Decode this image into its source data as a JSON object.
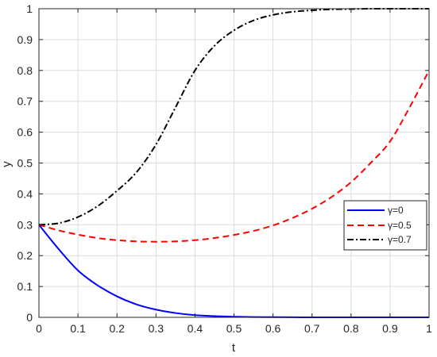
{
  "chart_data": {
    "type": "line",
    "xlabel": "t",
    "ylabel": "y",
    "xlim": [
      0,
      1
    ],
    "ylim": [
      0,
      1
    ],
    "xticks": [
      0,
      0.1,
      0.2,
      0.3,
      0.4,
      0.5,
      0.6,
      0.7,
      0.8,
      0.9,
      1
    ],
    "xtick_labels": [
      "0",
      "0.1",
      "0.2",
      "0.3",
      "0.4",
      "0.5",
      "0.6",
      "0.7",
      "0.8",
      "0.9",
      "1"
    ],
    "yticks": [
      0,
      0.1,
      0.2,
      0.3,
      0.4,
      0.5,
      0.6,
      0.7,
      0.8,
      0.9,
      1
    ],
    "ytick_labels": [
      "0",
      "0.1",
      "0.2",
      "0.3",
      "0.4",
      "0.5",
      "0.6",
      "0.7",
      "0.8",
      "0.9",
      "1"
    ],
    "grid": true,
    "legend_position": "lower-right",
    "x": [
      0,
      0.05,
      0.1,
      0.15,
      0.2,
      0.25,
      0.3,
      0.35,
      0.4,
      0.45,
      0.5,
      0.55,
      0.6,
      0.65,
      0.7,
      0.75,
      0.8,
      0.85,
      0.9,
      0.95,
      1
    ],
    "series": [
      {
        "name": "γ=0",
        "color": "#0000ff",
        "dash": "solid",
        "values": [
          0.3,
          0.222,
          0.152,
          0.104,
          0.068,
          0.042,
          0.025,
          0.014,
          0.007,
          0.004,
          0.002,
          0.001,
          0.0005,
          0.0002,
          0.0001,
          0,
          0,
          0,
          0,
          0,
          0
        ]
      },
      {
        "name": "γ=0.5",
        "color": "#ff0000",
        "dash": "dashed",
        "values": [
          0.3,
          0.282,
          0.268,
          0.257,
          0.25,
          0.246,
          0.245,
          0.246,
          0.25,
          0.257,
          0.267,
          0.28,
          0.298,
          0.322,
          0.352,
          0.39,
          0.438,
          0.5,
          0.57,
          0.68,
          0.8
        ]
      },
      {
        "name": "γ=0.7",
        "color": "#000000",
        "dash": "dashdot",
        "values": [
          0.3,
          0.305,
          0.325,
          0.36,
          0.41,
          0.47,
          0.56,
          0.68,
          0.8,
          0.88,
          0.93,
          0.962,
          0.98,
          0.99,
          0.995,
          0.998,
          0.999,
          1.0,
          1.0,
          1.0,
          1.0
        ]
      }
    ]
  }
}
